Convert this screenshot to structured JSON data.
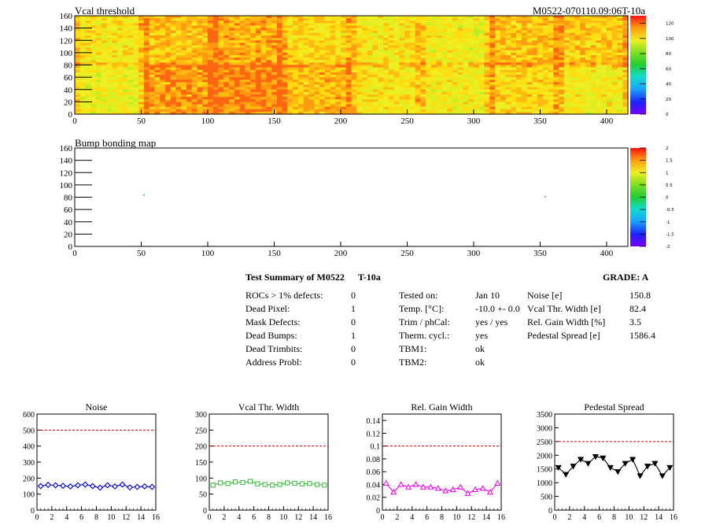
{
  "maps": [
    {
      "title": "Vcal threshold",
      "id_label": "M0522-070110.09:06T-10a",
      "x_ticks": [
        "0",
        "50",
        "100",
        "150",
        "200",
        "250",
        "300",
        "350",
        "400"
      ],
      "y_ticks": [
        "0",
        "20",
        "40",
        "60",
        "80",
        "100",
        "120",
        "140",
        "160"
      ],
      "scale_ticks": [
        "0",
        "20",
        "40",
        "60",
        "80",
        "100",
        "120"
      ],
      "scale_range": [
        0,
        130
      ]
    },
    {
      "title": "Bump bonding map",
      "id_label": "",
      "x_ticks": [
        "0",
        "50",
        "100",
        "150",
        "200",
        "250",
        "300",
        "350",
        "400"
      ],
      "y_ticks": [
        "0",
        "20",
        "40",
        "60",
        "80",
        "100",
        "120",
        "140",
        "160"
      ],
      "scale_ticks": [
        "-2",
        "-1.5",
        "-1",
        "-0.5",
        "0",
        "0.5",
        "1",
        "1.5",
        "2"
      ],
      "scale_range": [
        -2,
        2
      ]
    }
  ],
  "summary": {
    "title": "Test Summary of M0522",
    "test_id": "T-10a",
    "grade": "GRADE:  A",
    "col1": [
      {
        "label": "ROCs > 1% defects:",
        "value": "0"
      },
      {
        "label": "Dead Pixel:",
        "value": "1"
      },
      {
        "label": "Mask Defects:",
        "value": "0"
      },
      {
        "label": "Dead Bumps:",
        "value": "1"
      },
      {
        "label": "Dead Trimbits:",
        "value": "0"
      },
      {
        "label": "Address Probl:",
        "value": "0"
      }
    ],
    "col2": [
      {
        "label": "Tested on:",
        "value": "Jan 10"
      },
      {
        "label": "Temp. [°C]:",
        "value": "-10.0 +- 0.0"
      },
      {
        "label": "Trim / phCal:",
        "value": "yes / yes"
      },
      {
        "label": "Therm. cycl.:",
        "value": "yes"
      },
      {
        "label": "TBM1:",
        "value": "ok"
      },
      {
        "label": "TBM2:",
        "value": "ok"
      }
    ],
    "col3": [
      {
        "label": "Noise [e]",
        "value": "150.8"
      },
      {
        "label": "Vcal Thr. Width [e]",
        "value": "82.4"
      },
      {
        "label": "Rel. Gain Width [%]",
        "value": "3.5"
      },
      {
        "label": "Pedestal Spread [e]",
        "value": "1586.4"
      }
    ]
  },
  "colors": {
    "noise": "#0000cc",
    "vcal": "#33bb33",
    "gain": "#ee00ee",
    "pedestal": "#000000",
    "limit": "#cc0000"
  },
  "chart_data": [
    {
      "type": "line",
      "title": "Noise",
      "x": [
        0,
        1,
        2,
        3,
        4,
        5,
        6,
        7,
        8,
        9,
        10,
        11,
        12,
        13,
        14,
        15
      ],
      "values": [
        150,
        158,
        155,
        152,
        148,
        155,
        160,
        150,
        140,
        155,
        148,
        160,
        142,
        145,
        148,
        145
      ],
      "limit": 500,
      "xlim": [
        0,
        16
      ],
      "ylim": [
        0,
        600
      ],
      "marker": "diamond-open",
      "x_ticks": [
        "0",
        "2",
        "4",
        "6",
        "8",
        "10",
        "12",
        "14",
        "16"
      ],
      "y_ticks": [
        "0",
        "100",
        "200",
        "300",
        "400",
        "500",
        "600"
      ]
    },
    {
      "type": "line",
      "title": "Vcal Thr. Width",
      "x": [
        0,
        1,
        2,
        3,
        4,
        5,
        6,
        7,
        8,
        9,
        10,
        11,
        12,
        13,
        14,
        15
      ],
      "values": [
        78,
        85,
        83,
        88,
        86,
        90,
        82,
        80,
        78,
        80,
        85,
        84,
        82,
        83,
        80,
        78
      ],
      "limit": 200,
      "xlim": [
        0,
        16
      ],
      "ylim": [
        0,
        300
      ],
      "marker": "square-open",
      "x_ticks": [
        "0",
        "2",
        "4",
        "6",
        "8",
        "10",
        "12",
        "14",
        "16"
      ],
      "y_ticks": [
        "0",
        "50",
        "100",
        "150",
        "200",
        "250",
        "300"
      ]
    },
    {
      "type": "line",
      "title": "Rel. Gain Width",
      "x": [
        0,
        1,
        2,
        3,
        4,
        5,
        6,
        7,
        8,
        9,
        10,
        11,
        12,
        13,
        14,
        15
      ],
      "values": [
        0.042,
        0.028,
        0.04,
        0.036,
        0.04,
        0.036,
        0.036,
        0.034,
        0.03,
        0.032,
        0.036,
        0.026,
        0.032,
        0.034,
        0.028,
        0.042
      ],
      "limit": 0.1,
      "xlim": [
        0,
        16
      ],
      "ylim": [
        0,
        0.15
      ],
      "marker": "triangle-open",
      "x_ticks": [
        "0",
        "2",
        "4",
        "6",
        "8",
        "10",
        "12",
        "14",
        "16"
      ],
      "y_ticks": [
        "0",
        "0.02",
        "0.04",
        "0.06",
        "0.08",
        "0.1",
        "0.12",
        "0.14"
      ]
    },
    {
      "type": "line",
      "title": "Pedestal Spread",
      "x": [
        0,
        1,
        2,
        3,
        4,
        5,
        6,
        7,
        8,
        9,
        10,
        11,
        12,
        13,
        14,
        15
      ],
      "values": [
        1550,
        1300,
        1600,
        1850,
        1700,
        1950,
        1900,
        1550,
        1400,
        1700,
        1850,
        1250,
        1600,
        1700,
        1250,
        1550
      ],
      "limit": 2500,
      "xlim": [
        0,
        16
      ],
      "ylim": [
        0,
        3500
      ],
      "marker": "triangle-down",
      "x_ticks": [
        "0",
        "2",
        "4",
        "6",
        "8",
        "10",
        "12",
        "14",
        "16"
      ],
      "y_ticks": [
        "0",
        "500",
        "1000",
        "1500",
        "2000",
        "2500",
        "3000",
        "3500"
      ]
    }
  ]
}
